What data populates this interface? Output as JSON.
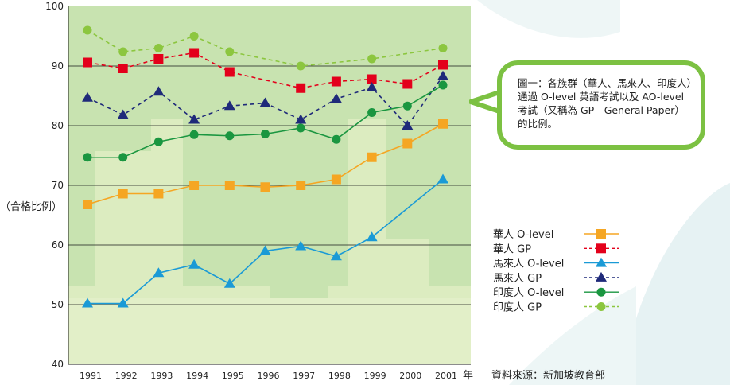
{
  "colors": {
    "chinese_olevel": "#f5a623",
    "chinese_gp": "#e3001b",
    "malay_olevel": "#1a9ad6",
    "malay_gp": "#1f2a7a",
    "indian_olevel": "#1a9640",
    "indian_gp": "#8cc63f",
    "plot_bg": "#c8e3b0",
    "plot_bg_light": "#dcecc0",
    "plot_bg_dark": "#a9d39a",
    "callout_border": "#7cc142",
    "decoration": "#e8f3f3"
  },
  "chart_data": {
    "type": "line",
    "categories": [
      "1991",
      "1992",
      "1993",
      "1994",
      "1995",
      "1996",
      "1997",
      "1998",
      "1999",
      "2000",
      "2001"
    ],
    "x_unit_label": "年",
    "ylabel": "（合格比例）",
    "ylim": [
      40,
      100
    ],
    "yticks": [
      "40",
      "50",
      "60",
      "70",
      "80",
      "90",
      "100"
    ],
    "grid": true,
    "legend_position": "right",
    "series": [
      {
        "name": "華人 O-level",
        "key": "chinese_olevel",
        "marker": "square",
        "dash": false,
        "values": [
          66.8,
          68.6,
          68.6,
          70.0,
          70.0,
          69.7,
          70.0,
          71.0,
          74.7,
          77.0,
          80.3
        ]
      },
      {
        "name": "華人 GP",
        "key": "chinese_gp",
        "marker": "square",
        "dash": true,
        "values": [
          90.6,
          89.6,
          91.2,
          92.2,
          89.0,
          null,
          86.3,
          87.4,
          87.8,
          87.0,
          90.2
        ]
      },
      {
        "name": "馬來人 O-level",
        "key": "malay_olevel",
        "marker": "triangle",
        "dash": false,
        "values": [
          50.2,
          50.2,
          55.3,
          56.7,
          53.5,
          59.0,
          59.8,
          58.1,
          61.3,
          null,
          71.0
        ]
      },
      {
        "name": "馬來人 GP",
        "key": "malay_gp",
        "marker": "triangle",
        "dash": true,
        "values": [
          84.7,
          81.8,
          85.7,
          81.0,
          83.3,
          83.8,
          81.0,
          84.5,
          86.4,
          80.0,
          88.3
        ]
      },
      {
        "name": "印度人 O-level",
        "key": "indian_olevel",
        "marker": "circle",
        "dash": false,
        "values": [
          74.7,
          74.7,
          77.3,
          78.5,
          78.3,
          78.6,
          79.6,
          77.7,
          82.2,
          83.3,
          86.8
        ]
      },
      {
        "name": "印度人 GP",
        "key": "indian_gp",
        "marker": "circle",
        "dash": true,
        "values": [
          96.0,
          92.4,
          93.0,
          95.0,
          92.4,
          null,
          90.0,
          null,
          91.2,
          null,
          93.0
        ]
      }
    ]
  },
  "source_text": "資料來源：新加坡教育部",
  "note_text": "圖一：各族群（華人、馬來人、印度人）通過 O-level 英語考試以及 AO-level 考試（又稱為 GP—General Paper）的比例。"
}
